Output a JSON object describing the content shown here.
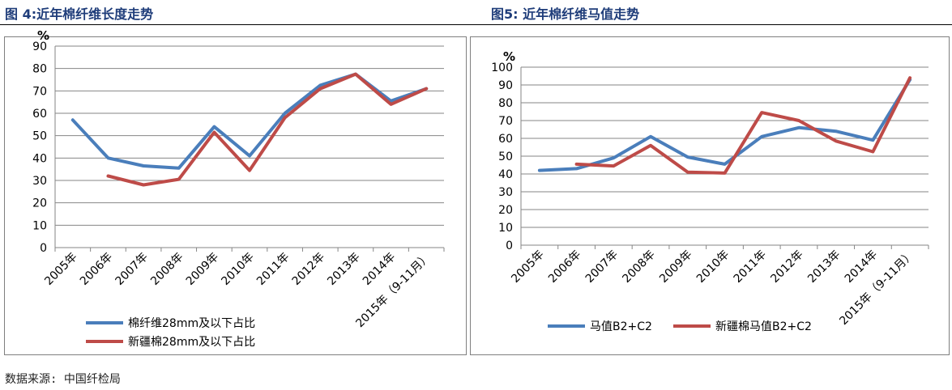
{
  "figures": {
    "left_title": "图 4:近年棉纤维长度走势",
    "right_title": "图5:  近年棉纤维马值走势"
  },
  "source": "数据来源: 中国纤检局",
  "colors": {
    "blue": "#4a7ebb",
    "red": "#be4b48",
    "grid": "#868686",
    "title": "#1f3d7a"
  },
  "chart_data": [
    {
      "type": "line",
      "title": "",
      "ylabel": "%",
      "xlabel": "",
      "ylim": [
        0,
        90
      ],
      "yticks": [
        0,
        10,
        20,
        30,
        40,
        50,
        60,
        70,
        80,
        90
      ],
      "categories": [
        "2005年",
        "2006年",
        "2007年",
        "2008年",
        "2009年",
        "2010年",
        "2011年",
        "2012年",
        "2013年",
        "2014年",
        "2015年（9-11月）"
      ],
      "grid": true,
      "legend_position": "bottom-left",
      "series": [
        {
          "name": "棉纤维28mm及以下占比",
          "color": "#4a7ebb",
          "values": [
            57,
            40,
            36.5,
            35.5,
            54,
            41,
            60,
            72.5,
            77.5,
            65.5,
            71
          ]
        },
        {
          "name": "新疆棉28mm及以下占比",
          "color": "#be4b48",
          "values": [
            null,
            32,
            28,
            30.5,
            51.5,
            34.5,
            58,
            71,
            77.5,
            64,
            71
          ]
        }
      ]
    },
    {
      "type": "line",
      "title": "",
      "ylabel": "%",
      "xlabel": "",
      "ylim": [
        0,
        100
      ],
      "yticks": [
        0,
        10,
        20,
        30,
        40,
        50,
        60,
        70,
        80,
        90,
        100
      ],
      "categories": [
        "2005年",
        "2006年",
        "2007年",
        "2008年",
        "2009年",
        "2010年",
        "2011年",
        "2012年",
        "2013年",
        "2014年",
        "2015年（9-11月）"
      ],
      "grid": true,
      "legend_position": "bottom",
      "series": [
        {
          "name": "马值B2+C2",
          "color": "#4a7ebb",
          "values": [
            42,
            43,
            49,
            61,
            49.5,
            45.5,
            61,
            66,
            64,
            59,
            93
          ]
        },
        {
          "name": "新疆棉马值B2+C2",
          "color": "#be4b48",
          "values": [
            null,
            45.5,
            44.5,
            56,
            41,
            40.5,
            74.5,
            70,
            58.5,
            52.5,
            94
          ]
        }
      ]
    }
  ]
}
